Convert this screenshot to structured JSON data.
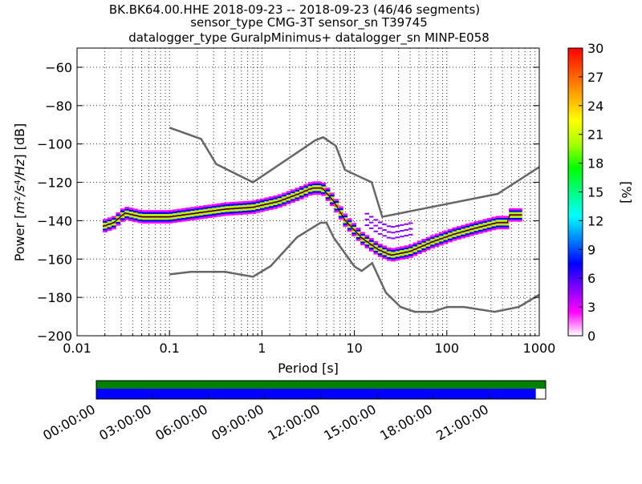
{
  "header": {
    "line1": "BK.BK64.00.HHE   2018-09-23 -- 2018-09-23  (46/46 segments)",
    "line2": "sensor_type CMG-3T sensor_sn T39745",
    "line3": "datalogger_type GuralpMinimus+ datalogger_sn MINP-E058"
  },
  "chart_data": {
    "type": "heatmap",
    "title": "BK.BK64.00.HHE   2018-09-23 -- 2018-09-23  (46/46 segments)",
    "xlabel": "Period [s]",
    "ylabel": "Power [m²/s⁴/Hz] [dB]",
    "x_scale": "log",
    "xlim": [
      0.01,
      1000
    ],
    "ylim": [
      -200,
      -50
    ],
    "x_ticks": [
      {
        "v": 0.01,
        "label": "0.01"
      },
      {
        "v": 0.1,
        "label": "0.1"
      },
      {
        "v": 1,
        "label": "1"
      },
      {
        "v": 10,
        "label": "10"
      },
      {
        "v": 100,
        "label": "100"
      },
      {
        "v": 1000,
        "label": "1000"
      }
    ],
    "y_ticks": [
      {
        "v": -60,
        "label": "−60"
      },
      {
        "v": -80,
        "label": "−80"
      },
      {
        "v": -100,
        "label": "−100"
      },
      {
        "v": -120,
        "label": "−120"
      },
      {
        "v": -140,
        "label": "−140"
      },
      {
        "v": -160,
        "label": "−160"
      },
      {
        "v": -180,
        "label": "−180"
      },
      {
        "v": -200,
        "label": "−200"
      }
    ],
    "grid": true,
    "colorbar": {
      "label": "[%]",
      "range": [
        0,
        30
      ],
      "ticks": [
        {
          "v": 0,
          "label": "0"
        },
        {
          "v": 3,
          "label": "3"
        },
        {
          "v": 6,
          "label": "6"
        },
        {
          "v": 9,
          "label": "9"
        },
        {
          "v": 12,
          "label": "12"
        },
        {
          "v": 15,
          "label": "15"
        },
        {
          "v": 18,
          "label": "18"
        },
        {
          "v": 21,
          "label": "21"
        },
        {
          "v": 24,
          "label": "24"
        },
        {
          "v": 27,
          "label": "27"
        },
        {
          "v": 30,
          "label": "30"
        }
      ],
      "colors": [
        "#ffffff",
        "#ff00ff",
        "#8000ff",
        "#0000ff",
        "#0080ff",
        "#00ffff",
        "#00ff80",
        "#00ff00",
        "#aaff00",
        "#ffff00",
        "#ffaa00",
        "#ff5500",
        "#ff0000"
      ]
    },
    "nhnm": [
      {
        "x": 0.1,
        "y": -91.5
      },
      {
        "x": 0.22,
        "y": -97.4
      },
      {
        "x": 0.32,
        "y": -110.5
      },
      {
        "x": 0.8,
        "y": -120
      },
      {
        "x": 3.8,
        "y": -98
      },
      {
        "x": 4.6,
        "y": -96.5
      },
      {
        "x": 6.3,
        "y": -101
      },
      {
        "x": 7.9,
        "y": -113.5
      },
      {
        "x": 15.4,
        "y": -120
      },
      {
        "x": 20,
        "y": -138
      },
      {
        "x": 354.8,
        "y": -126
      },
      {
        "x": 1000,
        "y": -112
      }
    ],
    "nlnm": [
      {
        "x": 0.1,
        "y": -168
      },
      {
        "x": 0.17,
        "y": -166.7
      },
      {
        "x": 0.4,
        "y": -166.7
      },
      {
        "x": 0.8,
        "y": -169.2
      },
      {
        "x": 1.24,
        "y": -163.7
      },
      {
        "x": 2.4,
        "y": -148.6
      },
      {
        "x": 4.3,
        "y": -141.1
      },
      {
        "x": 5.0,
        "y": -141.1
      },
      {
        "x": 6.0,
        "y": -149
      },
      {
        "x": 10,
        "y": -163.8
      },
      {
        "x": 12,
        "y": -166.2
      },
      {
        "x": 15.6,
        "y": -162.1
      },
      {
        "x": 21.9,
        "y": -177.5
      },
      {
        "x": 31.6,
        "y": -185
      },
      {
        "x": 45,
        "y": -187.5
      },
      {
        "x": 70,
        "y": -187.5
      },
      {
        "x": 101,
        "y": -185
      },
      {
        "x": 154,
        "y": -185
      },
      {
        "x": 328,
        "y": -187.5
      },
      {
        "x": 600,
        "y": -185
      },
      {
        "x": 1000,
        "y": -178.6
      }
    ],
    "mode": [
      {
        "x": 0.019,
        "y": -143
      },
      {
        "x": 0.025,
        "y": -141
      },
      {
        "x": 0.033,
        "y": -136
      },
      {
        "x": 0.05,
        "y": -138
      },
      {
        "x": 0.1,
        "y": -138
      },
      {
        "x": 0.2,
        "y": -136
      },
      {
        "x": 0.4,
        "y": -134
      },
      {
        "x": 0.8,
        "y": -133
      },
      {
        "x": 1.5,
        "y": -130
      },
      {
        "x": 2.5,
        "y": -126
      },
      {
        "x": 3.5,
        "y": -123
      },
      {
        "x": 4.5,
        "y": -123
      },
      {
        "x": 6,
        "y": -130
      },
      {
        "x": 8,
        "y": -140
      },
      {
        "x": 12,
        "y": -149
      },
      {
        "x": 18,
        "y": -155
      },
      {
        "x": 25,
        "y": -158
      },
      {
        "x": 40,
        "y": -156
      },
      {
        "x": 70,
        "y": -151
      },
      {
        "x": 120,
        "y": -147
      },
      {
        "x": 200,
        "y": -144
      },
      {
        "x": 350,
        "y": -141
      },
      {
        "x": 450,
        "y": -141
      },
      {
        "x": 480,
        "y": -137
      },
      {
        "x": 650,
        "y": -137
      }
    ],
    "mode_label": ""
  },
  "timeline": {
    "ticks": [
      "00:00:00",
      "03:00:00",
      "06:00:00",
      "09:00:00",
      "12:00:00",
      "15:00:00",
      "18:00:00",
      "21:00:00"
    ],
    "green_fraction": 1.0,
    "blue_fraction": 0.978,
    "green_color": "#008000",
    "blue_color": "#0000ff"
  }
}
